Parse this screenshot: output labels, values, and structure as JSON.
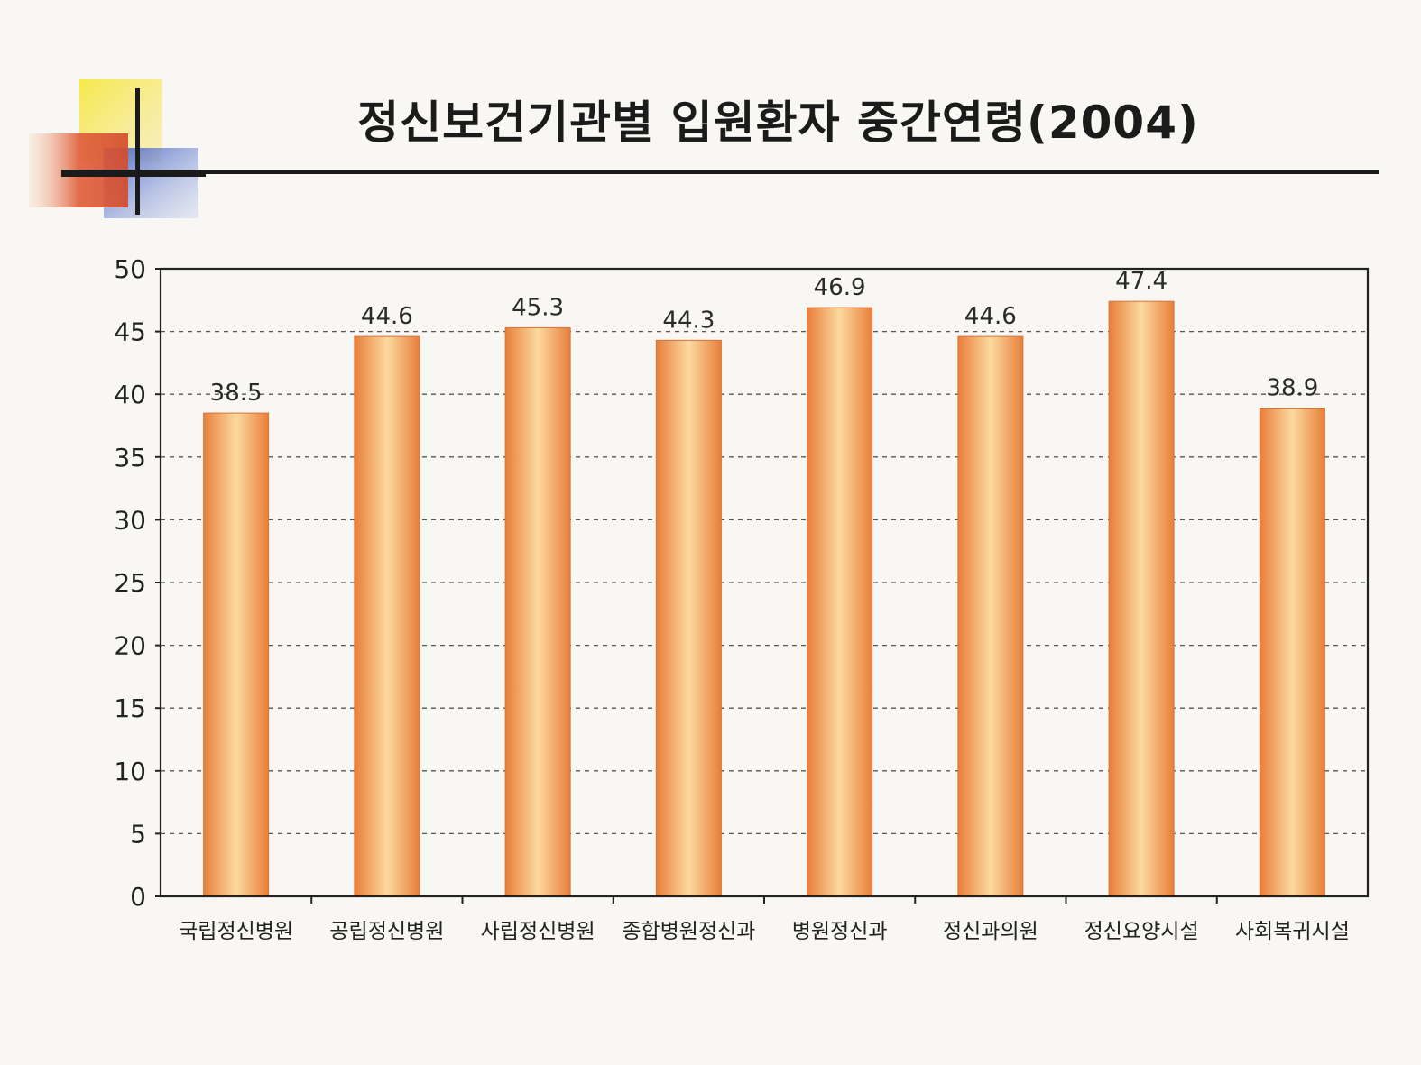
{
  "colors": {
    "bar_edge": "#e87f3a",
    "bar_center": "#fcd9a0",
    "grid": "#555555",
    "axis": "#222222",
    "logo_yellow": "#f7e84a",
    "logo_red": "#d9573c",
    "logo_blue": "#5f78c8"
  },
  "chart_data": {
    "type": "bar",
    "title": "정신보건기관별 입원환자 중간연령(2004)",
    "xlabel": "",
    "ylabel": "",
    "categories": [
      "국립정신병원",
      "공립정신병원",
      "사립정신병원",
      "종합병원정신과",
      "병원정신과",
      "정신과의원",
      "정신요양시설",
      "사회복귀시설"
    ],
    "values": [
      38.5,
      44.6,
      45.3,
      44.3,
      46.9,
      44.6,
      47.4,
      38.9
    ],
    "value_labels": [
      "38.5",
      "44.6",
      "45.3",
      "44.3",
      "46.9",
      "44.6",
      "47.4",
      "38.9"
    ],
    "ylim": [
      0,
      50
    ],
    "yticks": [
      "0",
      "5",
      "10",
      "15",
      "20",
      "25",
      "30",
      "35",
      "40",
      "45",
      "50"
    ],
    "grid": true,
    "legend": "none"
  }
}
